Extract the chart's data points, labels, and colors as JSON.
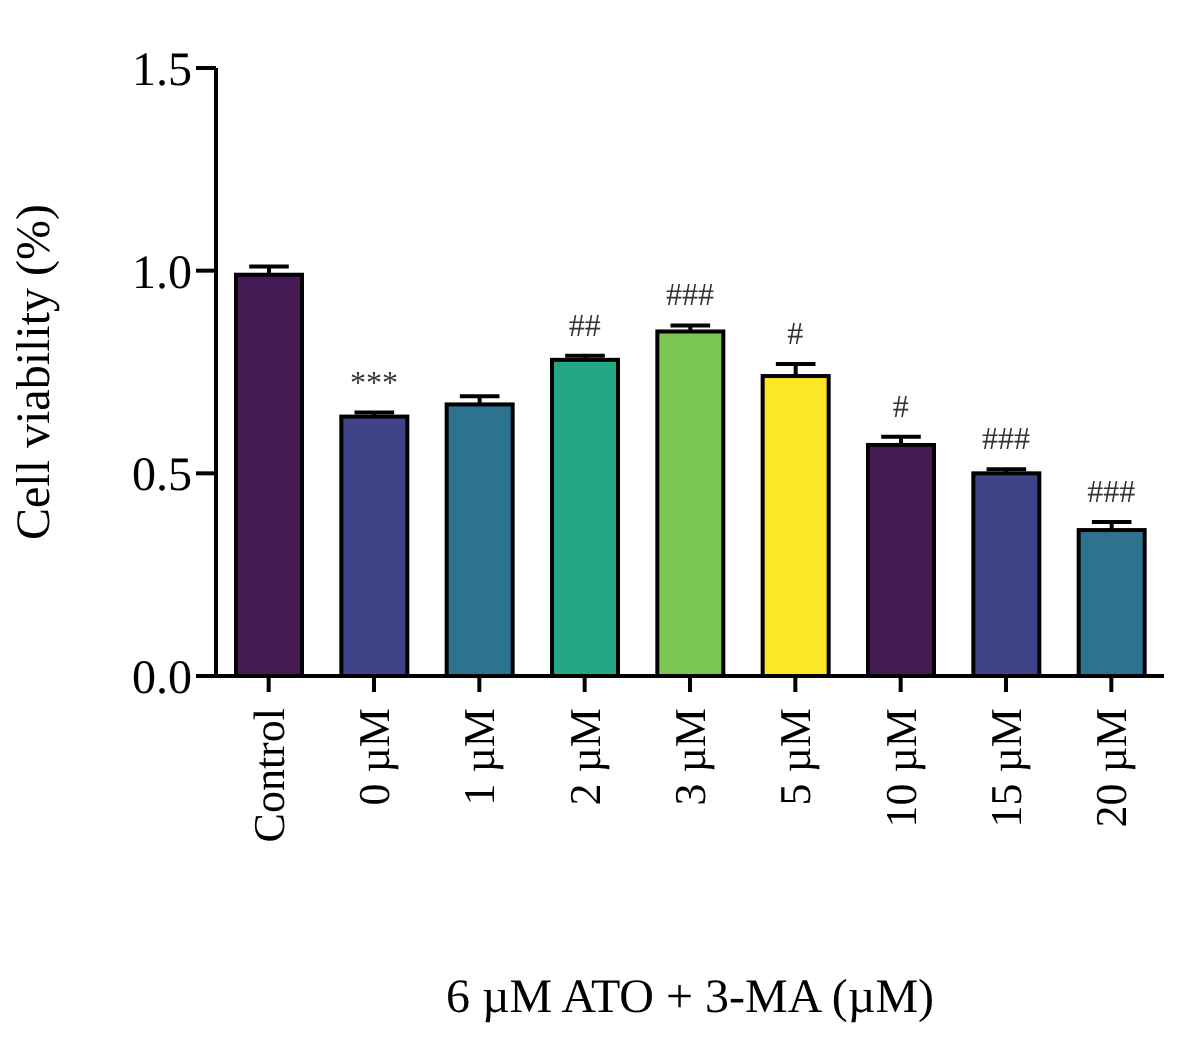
{
  "chart_data": {
    "type": "bar",
    "xlabel": "6 µM ATO + 3-MA (µM)",
    "ylabel": "Cell viability (%)",
    "categories": [
      "Control",
      "0 µM",
      "1 µM",
      "2 µM",
      "3 µM",
      "5 µM",
      "10 µM",
      "15 µM",
      "20 µM"
    ],
    "values": [
      0.99,
      0.64,
      0.67,
      0.78,
      0.85,
      0.74,
      0.57,
      0.5,
      0.36
    ],
    "errors": [
      0.02,
      0.01,
      0.02,
      0.01,
      0.015,
      0.03,
      0.02,
      0.01,
      0.02
    ],
    "colors": [
      "#441a55",
      "#3f4489",
      "#2d7390",
      "#22a884",
      "#7ac554",
      "#fde724",
      "#441a55",
      "#3f4489",
      "#2d7390"
    ],
    "ylim": [
      0,
      1.5
    ],
    "yticks": [
      {
        "value": 0,
        "label": "0.0"
      },
      {
        "value": 0.5,
        "label": "0.5"
      },
      {
        "value": 1,
        "label": "1.0"
      },
      {
        "value": 1.5,
        "label": "1.5"
      }
    ],
    "grid": false,
    "legend": false,
    "annotations": [
      {
        "text": "***",
        "x": "0 µM",
        "y": 0.65
      },
      {
        "text": "##",
        "x": "2 µM",
        "y": 0.79
      },
      {
        "text": "###",
        "x": "3 µM",
        "y": 0.865
      },
      {
        "text": "#",
        "x": "5 µM",
        "y": 0.77
      },
      {
        "text": "#",
        "x": "10 µM",
        "y": 0.59
      },
      {
        "text": "###",
        "x": "15 µM",
        "y": 0.51
      },
      {
        "text": "###",
        "x": "20 µM",
        "y": 0.38
      }
    ]
  }
}
